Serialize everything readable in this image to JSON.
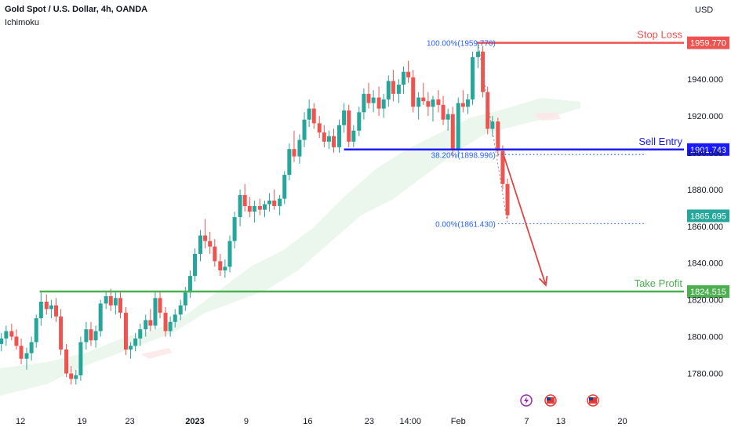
{
  "header": {
    "symbol": "Gold Spot / U.S. Dollar, 4h, OANDA",
    "indicator": "Ichimoku",
    "currency": "USD"
  },
  "colors": {
    "up": "#26a69a",
    "down": "#ef5350",
    "stop_loss": "#ef5350",
    "sell_entry": "#1a1aff",
    "take_profit": "#4caf50",
    "fib": "#2962ff",
    "cloud_green": "#e8f5e9",
    "cloud_red": "#fde8e8",
    "arrow": "#e04444",
    "axis_text": "#131722"
  },
  "chart_data": {
    "type": "candlestick",
    "y_axis": {
      "ticks": [
        1780,
        1800,
        1820,
        1840,
        1860,
        1880,
        1900,
        1920,
        1940
      ],
      "tick_labels": [
        "1780.000",
        "1800.000",
        "1820.000",
        "1840.000",
        "1860.000",
        "1880.000",
        "1900.000",
        "1920.000",
        "1940.000"
      ],
      "range": [
        1770,
        1966
      ]
    },
    "x_axis": {
      "range": [
        0,
        100
      ],
      "ticks": [
        {
          "x": 3,
          "label": "12",
          "bold": false
        },
        {
          "x": 12,
          "label": "19",
          "bold": false
        },
        {
          "x": 19,
          "label": "23",
          "bold": false
        },
        {
          "x": 28.5,
          "label": "2023",
          "bold": true
        },
        {
          "x": 36,
          "label": "9",
          "bold": false
        },
        {
          "x": 45,
          "label": "16",
          "bold": false
        },
        {
          "x": 54,
          "label": "23",
          "bold": false
        },
        {
          "x": 60,
          "label": "14:00",
          "bold": false
        },
        {
          "x": 67,
          "label": "Feb",
          "bold": false
        },
        {
          "x": 77,
          "label": "7",
          "bold": false
        },
        {
          "x": 82,
          "label": "13",
          "bold": false
        },
        {
          "x": 91,
          "label": "20",
          "bold": false
        }
      ]
    },
    "levels": [
      {
        "key": "stop_loss",
        "name": "Stop Loss",
        "price": 1959.77,
        "price_label": "1959.770",
        "x_start": 69.7,
        "x_end": 100
      },
      {
        "key": "sell_entry",
        "name": "Sell Entry",
        "price": 1901.743,
        "price_label": "1901.743",
        "x_start": 50.3,
        "x_end": 100
      },
      {
        "key": "take_profit",
        "name": "Take Profit",
        "price": 1824.515,
        "price_label": "1824.515",
        "x_start": 5.8,
        "x_end": 100
      }
    ],
    "last_price": {
      "price": 1865.695,
      "label": "1865.695"
    },
    "fib_levels": [
      {
        "label": "100.00%(1959.770)",
        "price": 1959.77,
        "dotted": false
      },
      {
        "label": "38.20%(1898.996)",
        "price": 1898.996,
        "dotted": true
      },
      {
        "label": "0.00%(1861.430)",
        "price": 1861.43,
        "dotted": true
      }
    ],
    "fib_line_range": [
      72.8,
      94.5
    ],
    "arrow": {
      "from": {
        "x": 73.7,
        "y": 1898
      },
      "to": {
        "x": 79.8,
        "y": 1828
      }
    },
    "candles_ohlc": [
      [
        0.2,
        1796,
        1802,
        1792,
        1799
      ],
      [
        0.9,
        1799,
        1806,
        1795,
        1803
      ],
      [
        1.7,
        1803,
        1807,
        1798,
        1800
      ],
      [
        2.4,
        1800,
        1804,
        1793,
        1795
      ],
      [
        3.1,
        1795,
        1799,
        1785,
        1788
      ],
      [
        3.9,
        1788,
        1794,
        1782,
        1791
      ],
      [
        4.6,
        1791,
        1800,
        1787,
        1797
      ],
      [
        5.3,
        1797,
        1812,
        1794,
        1810
      ],
      [
        6.0,
        1810,
        1824,
        1806,
        1819
      ],
      [
        6.8,
        1819,
        1823,
        1812,
        1815
      ],
      [
        7.5,
        1815,
        1820,
        1810,
        1817
      ],
      [
        8.2,
        1817,
        1821,
        1808,
        1811
      ],
      [
        8.9,
        1811,
        1815,
        1790,
        1793
      ],
      [
        9.7,
        1793,
        1796,
        1778,
        1780
      ],
      [
        10.4,
        1780,
        1784,
        1774,
        1777
      ],
      [
        11.1,
        1777,
        1782,
        1774,
        1779
      ],
      [
        11.8,
        1779,
        1800,
        1776,
        1797
      ],
      [
        12.6,
        1797,
        1808,
        1793,
        1804
      ],
      [
        13.3,
        1804,
        1808,
        1795,
        1798
      ],
      [
        14.0,
        1798,
        1806,
        1794,
        1803
      ],
      [
        14.7,
        1803,
        1820,
        1800,
        1818
      ],
      [
        15.5,
        1818,
        1825,
        1815,
        1822
      ],
      [
        16.2,
        1822,
        1826,
        1814,
        1817
      ],
      [
        16.9,
        1817,
        1824,
        1812,
        1821
      ],
      [
        17.6,
        1821,
        1825,
        1810,
        1813
      ],
      [
        18.4,
        1813,
        1816,
        1790,
        1793
      ],
      [
        19.1,
        1793,
        1797,
        1788,
        1795
      ],
      [
        19.8,
        1795,
        1802,
        1792,
        1799
      ],
      [
        20.5,
        1799,
        1807,
        1795,
        1804
      ],
      [
        21.3,
        1804,
        1812,
        1800,
        1809
      ],
      [
        22.0,
        1809,
        1815,
        1803,
        1806
      ],
      [
        22.7,
        1806,
        1825,
        1804,
        1821
      ],
      [
        23.4,
        1821,
        1824,
        1810,
        1813
      ],
      [
        24.2,
        1813,
        1816,
        1800,
        1803
      ],
      [
        24.9,
        1803,
        1811,
        1800,
        1808
      ],
      [
        25.6,
        1808,
        1815,
        1805,
        1812
      ],
      [
        26.4,
        1812,
        1820,
        1809,
        1817
      ],
      [
        27.1,
        1817,
        1827,
        1814,
        1824
      ],
      [
        27.8,
        1824,
        1836,
        1821,
        1833
      ],
      [
        28.5,
        1833,
        1848,
        1830,
        1845
      ],
      [
        29.3,
        1845,
        1858,
        1841,
        1855
      ],
      [
        30.0,
        1855,
        1864,
        1848,
        1852
      ],
      [
        30.7,
        1852,
        1857,
        1845,
        1849
      ],
      [
        31.4,
        1849,
        1853,
        1838,
        1841
      ],
      [
        32.2,
        1841,
        1845,
        1833,
        1836
      ],
      [
        32.9,
        1836,
        1842,
        1832,
        1838
      ],
      [
        33.6,
        1838,
        1855,
        1835,
        1852
      ],
      [
        34.3,
        1852,
        1868,
        1848,
        1865
      ],
      [
        35.1,
        1865,
        1880,
        1860,
        1877
      ],
      [
        35.8,
        1877,
        1883,
        1868,
        1871
      ],
      [
        36.5,
        1871,
        1876,
        1865,
        1868
      ],
      [
        37.2,
        1868,
        1874,
        1862,
        1871
      ],
      [
        38.0,
        1871,
        1875,
        1866,
        1869
      ],
      [
        38.7,
        1869,
        1874,
        1865,
        1872
      ],
      [
        39.4,
        1872,
        1878,
        1868,
        1874
      ],
      [
        40.1,
        1874,
        1880,
        1869,
        1871
      ],
      [
        40.9,
        1871,
        1877,
        1866,
        1875
      ],
      [
        41.6,
        1875,
        1890,
        1872,
        1888
      ],
      [
        42.3,
        1888,
        1905,
        1885,
        1902
      ],
      [
        43.0,
        1902,
        1912,
        1895,
        1898
      ],
      [
        43.8,
        1898,
        1910,
        1894,
        1907
      ],
      [
        44.5,
        1907,
        1922,
        1903,
        1918
      ],
      [
        45.2,
        1918,
        1929,
        1914,
        1924
      ],
      [
        45.9,
        1924,
        1927,
        1913,
        1916
      ],
      [
        46.7,
        1916,
        1920,
        1908,
        1911
      ],
      [
        47.4,
        1911,
        1915,
        1903,
        1906
      ],
      [
        48.1,
        1906,
        1912,
        1902,
        1909
      ],
      [
        48.8,
        1909,
        1913,
        1900,
        1903
      ],
      [
        49.6,
        1903,
        1918,
        1900,
        1915
      ],
      [
        50.3,
        1915,
        1927,
        1911,
        1923
      ],
      [
        51.0,
        1923,
        1926,
        1903,
        1906
      ],
      [
        51.7,
        1906,
        1915,
        1903,
        1912
      ],
      [
        52.5,
        1912,
        1925,
        1909,
        1922
      ],
      [
        53.2,
        1922,
        1935,
        1918,
        1932
      ],
      [
        53.9,
        1932,
        1938,
        1924,
        1927
      ],
      [
        54.6,
        1927,
        1934,
        1922,
        1930
      ],
      [
        55.4,
        1930,
        1936,
        1920,
        1924
      ],
      [
        56.1,
        1924,
        1932,
        1919,
        1929
      ],
      [
        56.8,
        1929,
        1942,
        1925,
        1939
      ],
      [
        57.5,
        1939,
        1945,
        1928,
        1932
      ],
      [
        58.3,
        1932,
        1940,
        1927,
        1937
      ],
      [
        59.0,
        1937,
        1947,
        1932,
        1944
      ],
      [
        59.7,
        1944,
        1950,
        1938,
        1941
      ],
      [
        60.4,
        1941,
        1945,
        1922,
        1925
      ],
      [
        61.2,
        1925,
        1933,
        1918,
        1930
      ],
      [
        61.9,
        1930,
        1938,
        1926,
        1928
      ],
      [
        62.6,
        1928,
        1933,
        1920,
        1925
      ],
      [
        63.3,
        1925,
        1931,
        1917,
        1929
      ],
      [
        64.1,
        1929,
        1934,
        1922,
        1926
      ],
      [
        64.8,
        1926,
        1931,
        1915,
        1918
      ],
      [
        65.5,
        1918,
        1924,
        1912,
        1921
      ],
      [
        66.2,
        1921,
        1925,
        1898,
        1902
      ],
      [
        67.0,
        1902,
        1930,
        1898,
        1927
      ],
      [
        67.7,
        1927,
        1934,
        1922,
        1925
      ],
      [
        68.4,
        1925,
        1932,
        1921,
        1929
      ],
      [
        69.1,
        1929,
        1955,
        1926,
        1952
      ],
      [
        69.9,
        1952,
        1960,
        1946,
        1955
      ],
      [
        70.6,
        1955,
        1958,
        1930,
        1933
      ],
      [
        71.3,
        1933,
        1936,
        1910,
        1913
      ],
      [
        72.0,
        1913,
        1920,
        1909,
        1917
      ],
      [
        72.8,
        1917,
        1919,
        1898,
        1901
      ],
      [
        73.5,
        1901,
        1904,
        1880,
        1883
      ],
      [
        74.2,
        1883,
        1886,
        1864,
        1866
      ]
    ]
  }
}
